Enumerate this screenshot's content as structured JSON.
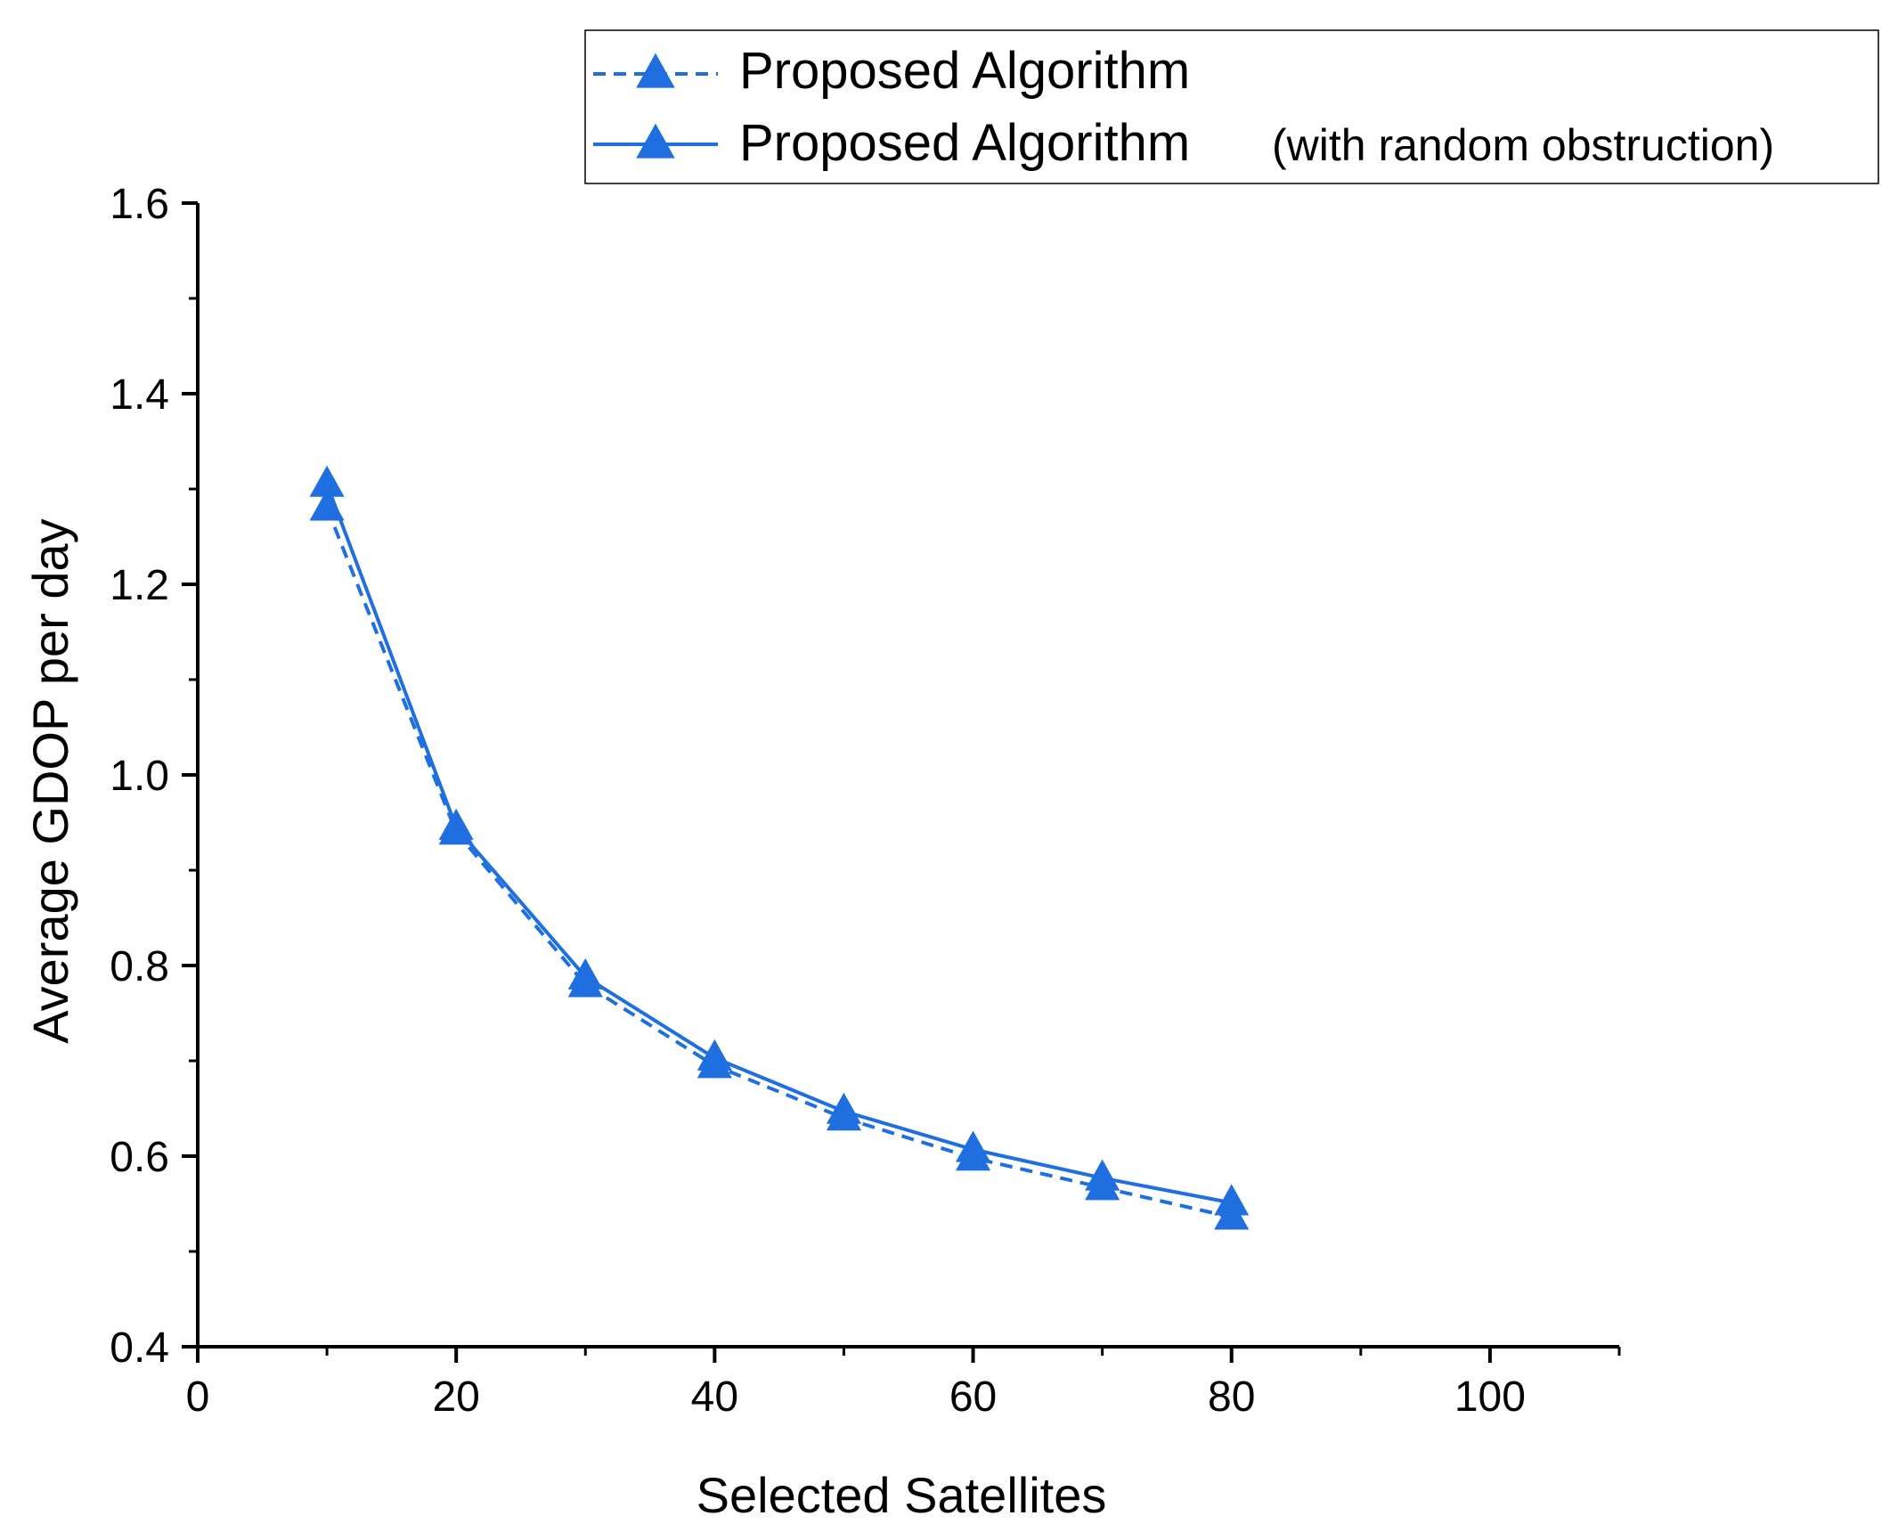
{
  "chart_data": {
    "type": "line",
    "title": "",
    "xlabel": "Selected Satellites",
    "ylabel": "Average GDOP per day",
    "xlim": [
      0,
      110
    ],
    "ylim": [
      0.4,
      1.6
    ],
    "x_ticks": [
      0,
      20,
      40,
      60,
      80,
      100
    ],
    "y_ticks": [
      0.4,
      0.6,
      0.8,
      1.0,
      1.2,
      1.4,
      1.6
    ],
    "x_tick_labels": [
      "0",
      "20",
      "40",
      "60",
      "80",
      "100"
    ],
    "y_tick_labels": [
      "0.4",
      "0.6",
      "0.8",
      "1.0",
      "1.2",
      "1.4",
      "1.6"
    ],
    "grid": false,
    "legend_position": "top-right",
    "x": [
      10,
      20,
      30,
      40,
      50,
      60,
      70,
      80
    ],
    "series": [
      {
        "name": "Proposed Algorithm",
        "line_style": "dashed",
        "marker": "triangle",
        "color": "#1f6fe0",
        "values": [
          1.28,
          0.94,
          0.78,
          0.695,
          0.64,
          0.598,
          0.567,
          0.536
        ]
      },
      {
        "name": "Proposed Algorithm",
        "name_suffix": "(with random obstruction)",
        "line_style": "solid",
        "marker": "triangle",
        "color": "#1f6fe0",
        "values": [
          1.305,
          0.945,
          0.788,
          0.703,
          0.647,
          0.607,
          0.577,
          0.551
        ]
      }
    ]
  }
}
